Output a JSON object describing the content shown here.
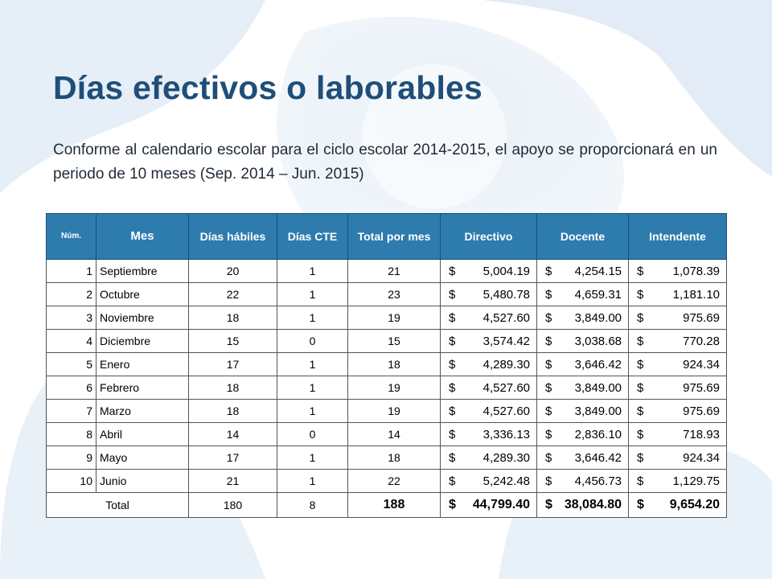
{
  "slide": {
    "title": "Días efectivos o laborables",
    "subtitle": "Conforme al calendario escolar para el ciclo escolar 2014-2015, el apoyo se proporcionará en un periodo de 10 meses (Sep. 2014 – Jun. 2015)"
  },
  "table": {
    "headers": [
      "Núm.",
      "Mes",
      "Días hábiles",
      "Días CTE",
      "Total por mes",
      "Directivo",
      "Docente",
      "Intendente"
    ],
    "currency_symbol": "$",
    "rows": [
      {
        "num": "1",
        "mes": "Septiembre",
        "habiles": "20",
        "cte": "1",
        "total": "21",
        "directivo": "5,004.19",
        "docente": "4,254.15",
        "intendente": "1,078.39"
      },
      {
        "num": "2",
        "mes": "Octubre",
        "habiles": "22",
        "cte": "1",
        "total": "23",
        "directivo": "5,480.78",
        "docente": "4,659.31",
        "intendente": "1,181.10"
      },
      {
        "num": "3",
        "mes": "Noviembre",
        "habiles": "18",
        "cte": "1",
        "total": "19",
        "directivo": "4,527.60",
        "docente": "3,849.00",
        "intendente": "975.69"
      },
      {
        "num": "4",
        "mes": "Diciembre",
        "habiles": "15",
        "cte": "0",
        "total": "15",
        "directivo": "3,574.42",
        "docente": "3,038.68",
        "intendente": "770.28"
      },
      {
        "num": "5",
        "mes": "Enero",
        "habiles": "17",
        "cte": "1",
        "total": "18",
        "directivo": "4,289.30",
        "docente": "3,646.42",
        "intendente": "924.34"
      },
      {
        "num": "6",
        "mes": "Febrero",
        "habiles": "18",
        "cte": "1",
        "total": "19",
        "directivo": "4,527.60",
        "docente": "3,849.00",
        "intendente": "975.69"
      },
      {
        "num": "7",
        "mes": "Marzo",
        "habiles": "18",
        "cte": "1",
        "total": "19",
        "directivo": "4,527.60",
        "docente": "3,849.00",
        "intendente": "975.69"
      },
      {
        "num": "8",
        "mes": "Abril",
        "habiles": "14",
        "cte": "0",
        "total": "14",
        "directivo": "3,336.13",
        "docente": "2,836.10",
        "intendente": "718.93"
      },
      {
        "num": "9",
        "mes": "Mayo",
        "habiles": "17",
        "cte": "1",
        "total": "18",
        "directivo": "4,289.30",
        "docente": "3,646.42",
        "intendente": "924.34"
      },
      {
        "num": "10",
        "mes": "Junio",
        "habiles": "21",
        "cte": "1",
        "total": "22",
        "directivo": "5,242.48",
        "docente": "4,456.73",
        "intendente": "1,129.75"
      }
    ],
    "totals": {
      "label": "Total",
      "habiles": "180",
      "cte": "8",
      "total": "188",
      "directivo": "44,799.40",
      "docente": "38,084.80",
      "intendente": "9,654.20"
    }
  },
  "colors": {
    "title": "#1f4e79",
    "header_bg": "#2e7cae",
    "header_text": "#ffffff",
    "background_shape": "#dce8f3"
  }
}
